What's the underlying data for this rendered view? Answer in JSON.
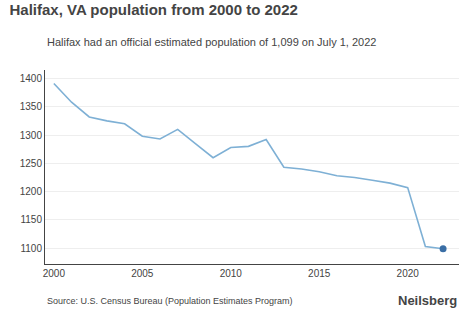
{
  "chart_data": {
    "type": "line",
    "title": "Halifax, VA population from 2000 to 2022",
    "subtitle": "Halifax had an official estimated population of 1,099 on July 1, 2022",
    "annotations": [
      "Source: U.S. Census Bureau (Population Estimates Program)",
      "Neilsberg"
    ],
    "x": [
      2000,
      2001,
      2002,
      2003,
      2004,
      2005,
      2006,
      2007,
      2008,
      2009,
      2010,
      2011,
      2012,
      2013,
      2014,
      2015,
      2016,
      2017,
      2018,
      2019,
      2020,
      2021,
      2022
    ],
    "series": [
      {
        "type": "line",
        "color": "#7eb0d5",
        "values": [
          1391,
          1358,
          1332,
          1325,
          1320,
          1298,
          1293,
          1310,
          1285,
          1260,
          1278,
          1280,
          1292,
          1243,
          1240,
          1235,
          1228,
          1225,
          1220,
          1215,
          1207,
          1103,
          1099
        ]
      },
      {
        "type": "scatter",
        "color": "#3a6ea5",
        "values": [
          null,
          null,
          null,
          null,
          null,
          null,
          null,
          null,
          null,
          null,
          null,
          null,
          null,
          null,
          null,
          null,
          null,
          null,
          null,
          null,
          null,
          null,
          1099
        ]
      }
    ],
    "xlim": [
      1999.5,
      2022.9
    ],
    "xticks": [
      2000,
      2005,
      2010,
      2015,
      2020
    ],
    "ylim": [
      1072,
      1415
    ],
    "yticks": [
      1100,
      1150,
      1200,
      1250,
      1300,
      1350,
      1400
    ],
    "grid": "y"
  }
}
